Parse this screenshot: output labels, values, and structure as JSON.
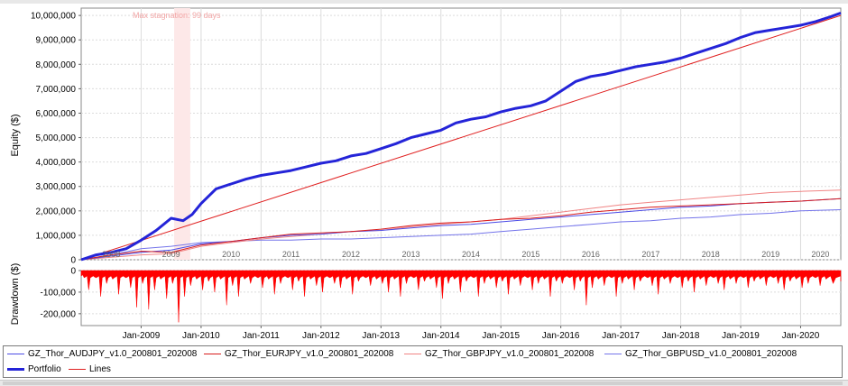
{
  "stagnation_label": "Max stagnation: 99 days",
  "colors": {
    "portfolio": "#2424d8",
    "lines": "#e02020",
    "audjpy": "#4b4be6",
    "eurjpy": "#d81c1c",
    "gbpjpy": "#f08484",
    "gbpusd": "#7474ea",
    "drawdown": "#ff0000",
    "grid": "#dcdcdc",
    "stagnation": "#fde8e8"
  },
  "legend": {
    "items": [
      {
        "label": "GZ_Thor_AUDJPY_v1.0_200801_202008",
        "color": "#4b4be6",
        "width": 1
      },
      {
        "label": "GZ_Thor_EURJPY_v1.0_200801_202008",
        "color": "#d81c1c",
        "width": 1
      },
      {
        "label": "GZ_Thor_GBPJPY_v1.0_200801_202008",
        "color": "#f08484",
        "width": 1
      },
      {
        "label": "GZ_Thor_GBPUSD_v1.0_200801_202008",
        "color": "#7474ea",
        "width": 1
      },
      {
        "label": "Portfolio",
        "color": "#2424d8",
        "width": 3
      },
      {
        "label": "Lines",
        "color": "#e02020",
        "width": 1
      }
    ]
  },
  "chart_data": [
    {
      "type": "line",
      "ylabel": "Equity ($)",
      "ylim": [
        0,
        10300000
      ],
      "yticks": [
        "0",
        "1,000,000",
        "2,000,000",
        "3,000,000",
        "4,000,000",
        "5,000,000",
        "6,000,000",
        "7,000,000",
        "8,000,000",
        "9,000,000",
        "10,000,000"
      ],
      "ytick_values": [
        0,
        1000000,
        2000000,
        3000000,
        4000000,
        5000000,
        6000000,
        7000000,
        8000000,
        9000000,
        10000000
      ],
      "xlim": [
        2008.0,
        2020.67
      ],
      "year_labels": [
        "2008",
        "2009",
        "2010",
        "2011",
        "2012",
        "2013",
        "2014",
        "2015",
        "2016",
        "2017",
        "2018",
        "2019",
        "2020"
      ],
      "year_positions": [
        2008.5,
        2009.5,
        2010.5,
        2011.5,
        2012.5,
        2013.5,
        2014.5,
        2015.5,
        2016.5,
        2017.5,
        2018.5,
        2019.5,
        2020.33
      ],
      "grid": true,
      "stagnation_range": [
        2009.55,
        2009.82
      ],
      "series": [
        {
          "name": "Portfolio",
          "key": "portfolio",
          "width": 3,
          "x": [
            2008.0,
            2008.25,
            2008.5,
            2008.75,
            2009.0,
            2009.25,
            2009.5,
            2009.7,
            2009.85,
            2010.0,
            2010.25,
            2010.5,
            2010.75,
            2011.0,
            2011.25,
            2011.5,
            2011.75,
            2012.0,
            2012.25,
            2012.5,
            2012.75,
            2013.0,
            2013.25,
            2013.5,
            2013.75,
            2014.0,
            2014.25,
            2014.5,
            2014.75,
            2015.0,
            2015.25,
            2015.5,
            2015.75,
            2016.0,
            2016.25,
            2016.5,
            2016.75,
            2017.0,
            2017.25,
            2017.5,
            2017.75,
            2018.0,
            2018.25,
            2018.5,
            2018.75,
            2019.0,
            2019.25,
            2019.5,
            2019.75,
            2020.0,
            2020.25,
            2020.5,
            2020.67
          ],
          "y": [
            0,
            200000,
            300000,
            450000,
            800000,
            1200000,
            1700000,
            1600000,
            1850000,
            2300000,
            2900000,
            3100000,
            3300000,
            3450000,
            3550000,
            3650000,
            3800000,
            3950000,
            4050000,
            4250000,
            4350000,
            4550000,
            4750000,
            5000000,
            5150000,
            5300000,
            5600000,
            5750000,
            5850000,
            6050000,
            6200000,
            6300000,
            6500000,
            6900000,
            7300000,
            7500000,
            7600000,
            7750000,
            7900000,
            8000000,
            8100000,
            8250000,
            8450000,
            8650000,
            8850000,
            9100000,
            9300000,
            9400000,
            9500000,
            9600000,
            9750000,
            9950000,
            10100000
          ]
        },
        {
          "name": "Lines",
          "key": "lines",
          "width": 1,
          "x": [
            2008.0,
            2020.67
          ],
          "y": [
            0,
            10000000
          ]
        },
        {
          "name": "GZ_Thor_AUDJPY_v1.0_200801_202008",
          "key": "audjpy",
          "width": 1,
          "x": [
            2008.0,
            2008.5,
            2009.0,
            2009.5,
            2010.0,
            2010.5,
            2011.0,
            2011.5,
            2012.0,
            2012.5,
            2013.0,
            2013.5,
            2014.0,
            2014.5,
            2015.0,
            2015.5,
            2016.0,
            2016.5,
            2017.0,
            2017.5,
            2018.0,
            2018.5,
            2019.0,
            2019.5,
            2020.0,
            2020.67
          ],
          "y": [
            0,
            150000,
            300000,
            400000,
            650000,
            750000,
            900000,
            1000000,
            1050000,
            1150000,
            1200000,
            1300000,
            1400000,
            1450000,
            1550000,
            1650000,
            1750000,
            1850000,
            1950000,
            2050000,
            2150000,
            2200000,
            2300000,
            2350000,
            2400000,
            2500000
          ]
        },
        {
          "name": "GZ_Thor_EURJPY_v1.0_200801_202008",
          "key": "eurjpy",
          "width": 1,
          "x": [
            2008.0,
            2008.5,
            2009.0,
            2009.5,
            2010.0,
            2010.5,
            2011.0,
            2011.5,
            2012.0,
            2012.5,
            2013.0,
            2013.5,
            2014.0,
            2014.5,
            2015.0,
            2015.5,
            2016.0,
            2016.5,
            2017.0,
            2017.5,
            2018.0,
            2018.5,
            2019.0,
            2019.5,
            2020.0,
            2020.67
          ],
          "y": [
            0,
            200000,
            350000,
            300000,
            600000,
            750000,
            900000,
            1050000,
            1100000,
            1150000,
            1250000,
            1400000,
            1500000,
            1550000,
            1650000,
            1700000,
            1800000,
            1950000,
            2050000,
            2150000,
            2200000,
            2250000,
            2300000,
            2350000,
            2400000,
            2500000
          ]
        },
        {
          "name": "GZ_Thor_GBPJPY_v1.0_200801_202008",
          "key": "gbpjpy",
          "width": 1,
          "x": [
            2008.0,
            2008.5,
            2009.0,
            2009.5,
            2010.0,
            2010.5,
            2011.0,
            2011.5,
            2012.0,
            2012.5,
            2013.0,
            2013.5,
            2014.0,
            2014.5,
            2015.0,
            2015.5,
            2016.0,
            2016.5,
            2017.0,
            2017.5,
            2018.0,
            2018.5,
            2019.0,
            2019.5,
            2020.0,
            2020.67
          ],
          "y": [
            0,
            100000,
            200000,
            250000,
            550000,
            700000,
            850000,
            950000,
            1050000,
            1150000,
            1200000,
            1350000,
            1450000,
            1550000,
            1650000,
            1800000,
            1950000,
            2100000,
            2250000,
            2350000,
            2450000,
            2550000,
            2650000,
            2750000,
            2800000,
            2850000
          ]
        },
        {
          "name": "GZ_Thor_GBPUSD_v1.0_200801_202008",
          "key": "gbpusd",
          "width": 1,
          "x": [
            2008.0,
            2008.5,
            2009.0,
            2009.5,
            2010.0,
            2010.5,
            2011.0,
            2011.5,
            2012.0,
            2012.5,
            2013.0,
            2013.5,
            2014.0,
            2014.5,
            2015.0,
            2015.5,
            2016.0,
            2016.5,
            2017.0,
            2017.5,
            2018.0,
            2018.5,
            2019.0,
            2019.5,
            2020.0,
            2020.67
          ],
          "y": [
            0,
            200000,
            450000,
            550000,
            700000,
            750000,
            800000,
            800000,
            850000,
            850000,
            900000,
            950000,
            1000000,
            1050000,
            1150000,
            1250000,
            1350000,
            1450000,
            1550000,
            1600000,
            1700000,
            1750000,
            1850000,
            1900000,
            2000000,
            2050000
          ]
        }
      ]
    },
    {
      "type": "area",
      "ylabel": "Drawdown ($)",
      "ylim": [
        -255000,
        0
      ],
      "yticks": [
        "0",
        "-100,000",
        "-200,000"
      ],
      "ytick_values": [
        0,
        -100000,
        -200000
      ],
      "xlim": [
        2008.0,
        2020.67
      ],
      "xticks": [
        "Jan-2009",
        "Jan-2010",
        "Jan-2011",
        "Jan-2012",
        "Jan-2013",
        "Jan-2014",
        "Jan-2015",
        "Jan-2016",
        "Jan-2017",
        "Jan-2018",
        "Jan-2019",
        "Jan-2020"
      ],
      "xtick_values": [
        2009.0,
        2010.0,
        2011.0,
        2012.0,
        2013.0,
        2014.0,
        2015.0,
        2016.0,
        2017.0,
        2018.0,
        2019.0,
        2020.0
      ],
      "series": [
        {
          "name": "Drawdown",
          "key": "drawdown",
          "x": [
            2008.0,
            2008.1,
            2008.2,
            2008.3,
            2008.4,
            2008.5,
            2008.6,
            2008.7,
            2008.8,
            2008.9,
            2009.0,
            2009.1,
            2009.2,
            2009.3,
            2009.4,
            2009.5,
            2009.6,
            2009.7,
            2009.8,
            2009.9,
            2010.0,
            2010.1,
            2010.2,
            2010.3,
            2010.4,
            2010.5,
            2010.6,
            2010.7,
            2010.8,
            2010.9,
            2011.0,
            2011.1,
            2011.2,
            2011.3,
            2011.4,
            2011.5,
            2011.6,
            2011.7,
            2011.8,
            2011.9,
            2012.0,
            2012.1,
            2012.2,
            2012.3,
            2012.4,
            2012.5,
            2012.6,
            2012.7,
            2012.8,
            2012.9,
            2013.0,
            2013.1,
            2013.2,
            2013.3,
            2013.4,
            2013.5,
            2013.6,
            2013.7,
            2013.8,
            2013.9,
            2014.0,
            2014.1,
            2014.2,
            2014.3,
            2014.4,
            2014.5,
            2014.6,
            2014.7,
            2014.8,
            2014.9,
            2015.0,
            2015.1,
            2015.2,
            2015.3,
            2015.4,
            2015.5,
            2015.6,
            2015.7,
            2015.8,
            2015.9,
            2016.0,
            2016.1,
            2016.2,
            2016.3,
            2016.4,
            2016.5,
            2016.6,
            2016.7,
            2016.8,
            2016.9,
            2017.0,
            2017.1,
            2017.2,
            2017.3,
            2017.4,
            2017.5,
            2017.6,
            2017.7,
            2017.8,
            2017.9,
            2018.0,
            2018.1,
            2018.2,
            2018.3,
            2018.4,
            2018.5,
            2018.6,
            2018.7,
            2018.8,
            2018.9,
            2019.0,
            2019.1,
            2019.2,
            2019.3,
            2019.4,
            2019.5,
            2019.6,
            2019.7,
            2019.8,
            2019.9,
            2020.0,
            2020.1,
            2020.2,
            2020.3,
            2020.4,
            2020.5,
            2020.67
          ],
          "y": [
            -20000,
            -90000,
            -30000,
            -120000,
            -60000,
            -40000,
            -110000,
            -30000,
            -80000,
            -170000,
            -60000,
            -180000,
            -90000,
            -40000,
            -130000,
            -60000,
            -240000,
            -120000,
            -70000,
            -40000,
            -90000,
            -50000,
            -100000,
            -40000,
            -160000,
            -70000,
            -120000,
            -40000,
            -60000,
            -30000,
            -80000,
            -40000,
            -110000,
            -60000,
            -30000,
            -90000,
            -50000,
            -120000,
            -40000,
            -70000,
            -100000,
            -30000,
            -60000,
            -80000,
            -40000,
            -110000,
            -50000,
            -30000,
            -70000,
            -40000,
            -60000,
            -100000,
            -40000,
            -120000,
            -60000,
            -30000,
            -90000,
            -50000,
            -40000,
            -80000,
            -130000,
            -60000,
            -40000,
            -100000,
            -50000,
            -30000,
            -120000,
            -60000,
            -40000,
            -80000,
            -50000,
            -110000,
            -40000,
            -70000,
            -30000,
            -90000,
            -60000,
            -40000,
            -120000,
            -50000,
            -60000,
            -30000,
            -90000,
            -50000,
            -160000,
            -80000,
            -40000,
            -70000,
            -30000,
            -120000,
            -60000,
            -40000,
            -90000,
            -50000,
            -30000,
            -70000,
            -110000,
            -40000,
            -60000,
            -30000,
            -80000,
            -50000,
            -100000,
            -40000,
            -70000,
            -30000,
            -60000,
            -90000,
            -40000,
            -60000,
            -30000,
            -80000,
            -50000,
            -40000,
            -70000,
            -30000,
            -60000,
            -90000,
            -50000,
            -40000,
            -80000,
            -60000,
            -30000,
            -70000,
            -40000,
            -60000,
            -50000
          ]
        }
      ]
    }
  ]
}
